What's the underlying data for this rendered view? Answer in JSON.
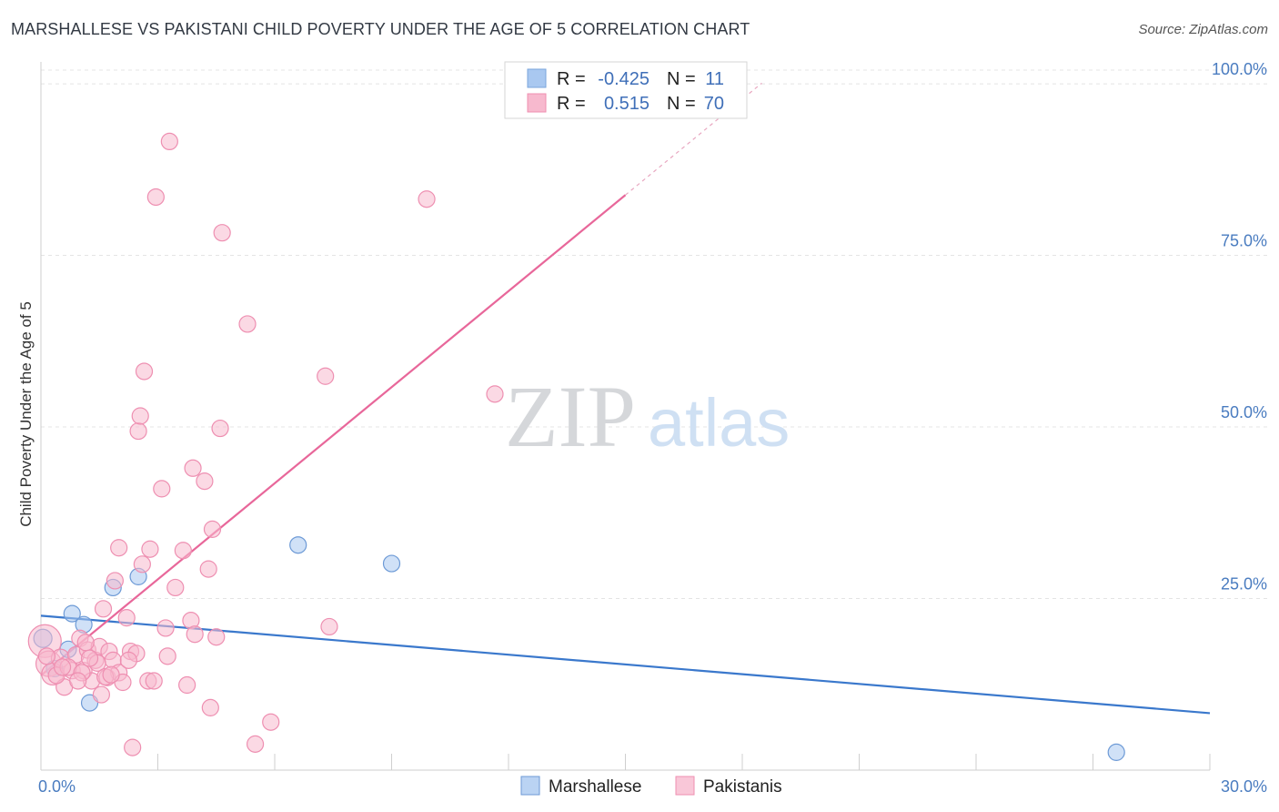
{
  "title": "MARSHALLESE VS PAKISTANI CHILD POVERTY UNDER THE AGE OF 5 CORRELATION CHART",
  "source": "Source: ZipAtlas.com",
  "watermark": {
    "zip": "ZIP",
    "atlas": "atlas"
  },
  "chart_data": {
    "type": "scatter",
    "title": "MARSHALLESE VS PAKISTANI CHILD POVERTY UNDER THE AGE OF 5 CORRELATION CHART",
    "ylabel": "Child Poverty Under the Age of 5",
    "xlabel": "",
    "xlim": [
      0,
      30
    ],
    "ylim": [
      0,
      102
    ],
    "x_tick_labels": [
      "0.0%",
      "30.0%"
    ],
    "y_ticks": [
      25,
      50,
      75,
      100
    ],
    "y_tick_labels": [
      "25.0%",
      "50.0%",
      "75.0%",
      "100.0%"
    ],
    "legend_stats": [
      {
        "r_label": "R =",
        "r_value": "-0.425",
        "n_label": "N =",
        "n_value": "11",
        "color": "#a9c8f0",
        "stroke": "#7aa6dd"
      },
      {
        "r_label": "R =",
        "r_value": " 0.515",
        "n_label": "N =",
        "n_value": "70",
        "color": "#f7b9ce",
        "stroke": "#ef8fb0"
      }
    ],
    "series": [
      {
        "name": "Marshallese",
        "color": "#a9c8f0",
        "stroke": "#6d9ad6",
        "trend": {
          "x0": 0,
          "y0": 22.5,
          "x1": 30,
          "y1": 8.3,
          "color": "#3a78cc"
        },
        "points": [
          [
            0.05,
            19.2,
            10
          ],
          [
            0.7,
            17.6,
            9
          ],
          [
            0.8,
            22.8,
            9
          ],
          [
            1.1,
            21.2,
            9
          ],
          [
            1.25,
            9.8,
            9
          ],
          [
            1.85,
            26.6,
            9
          ],
          [
            2.5,
            28.2,
            9
          ],
          [
            6.6,
            32.8,
            9
          ],
          [
            9.0,
            30.1,
            9
          ],
          [
            27.6,
            2.6,
            9
          ],
          [
            0.35,
            14.8,
            9
          ]
        ]
      },
      {
        "name": "Pakistanis",
        "color": "#f7b9ce",
        "stroke": "#ee8fb1",
        "trend": {
          "x0": 0,
          "y0": 13.8,
          "x1": 15.0,
          "y1": 83.8,
          "dash_x1": 18.5,
          "dash_y1": 100.1,
          "color": "#e8679a"
        },
        "points": [
          [
            0.1,
            18.8,
            18
          ],
          [
            0.2,
            15.5,
            14
          ],
          [
            0.3,
            14.0,
            12
          ],
          [
            0.5,
            16.3,
            10
          ],
          [
            0.6,
            12.1,
            9
          ],
          [
            0.8,
            14.5,
            9
          ],
          [
            0.9,
            16.8,
            9
          ],
          [
            1.0,
            19.2,
            9
          ],
          [
            1.1,
            14.5,
            9
          ],
          [
            1.2,
            17.5,
            9
          ],
          [
            1.3,
            13.0,
            9
          ],
          [
            1.4,
            16.0,
            9
          ],
          [
            1.5,
            18.0,
            9
          ],
          [
            1.55,
            11.0,
            9
          ],
          [
            1.6,
            23.5,
            9
          ],
          [
            1.7,
            13.5,
            9
          ],
          [
            1.75,
            17.3,
            9
          ],
          [
            1.85,
            16.0,
            9
          ],
          [
            1.9,
            27.6,
            9
          ],
          [
            2.0,
            14.2,
            9
          ],
          [
            2.0,
            32.4,
            9
          ],
          [
            2.1,
            12.8,
            9
          ],
          [
            2.2,
            22.2,
            9
          ],
          [
            2.3,
            17.3,
            9
          ],
          [
            2.35,
            3.3,
            9
          ],
          [
            2.45,
            17.0,
            9
          ],
          [
            2.5,
            49.4,
            9
          ],
          [
            2.55,
            51.6,
            9
          ],
          [
            2.6,
            30.0,
            9
          ],
          [
            2.65,
            58.1,
            9
          ],
          [
            2.75,
            13.0,
            9
          ],
          [
            2.8,
            32.2,
            9
          ],
          [
            2.9,
            13.0,
            9
          ],
          [
            2.95,
            83.5,
            9
          ],
          [
            3.1,
            41.0,
            9
          ],
          [
            3.2,
            20.7,
            9
          ],
          [
            3.25,
            16.6,
            9
          ],
          [
            3.3,
            91.6,
            9
          ],
          [
            3.45,
            26.6,
            9
          ],
          [
            3.65,
            32.0,
            9
          ],
          [
            3.75,
            12.4,
            9
          ],
          [
            3.85,
            21.8,
            9
          ],
          [
            3.9,
            44.0,
            9
          ],
          [
            3.95,
            19.8,
            9
          ],
          [
            4.2,
            42.1,
            9
          ],
          [
            4.3,
            29.3,
            9
          ],
          [
            4.35,
            9.1,
            9
          ],
          [
            4.4,
            35.1,
            9
          ],
          [
            4.5,
            19.4,
            9
          ],
          [
            4.6,
            49.8,
            9
          ],
          [
            4.65,
            78.3,
            9
          ],
          [
            5.3,
            65.0,
            9
          ],
          [
            5.5,
            3.8,
            9
          ],
          [
            5.9,
            7.0,
            9
          ],
          [
            7.3,
            57.4,
            9
          ],
          [
            7.4,
            20.9,
            9
          ],
          [
            9.9,
            83.2,
            9
          ],
          [
            11.65,
            54.8,
            9
          ],
          [
            0.4,
            13.8,
            9
          ],
          [
            0.7,
            15.0,
            9
          ],
          [
            1.05,
            14.2,
            9
          ],
          [
            1.45,
            15.6,
            9
          ],
          [
            0.15,
            16.6,
            9
          ],
          [
            1.65,
            13.6,
            9
          ],
          [
            2.25,
            16.0,
            9
          ],
          [
            0.95,
            13.0,
            9
          ],
          [
            1.25,
            16.3,
            9
          ],
          [
            0.55,
            15.0,
            9
          ],
          [
            1.15,
            18.6,
            9
          ],
          [
            1.8,
            13.9,
            9
          ]
        ]
      }
    ]
  }
}
